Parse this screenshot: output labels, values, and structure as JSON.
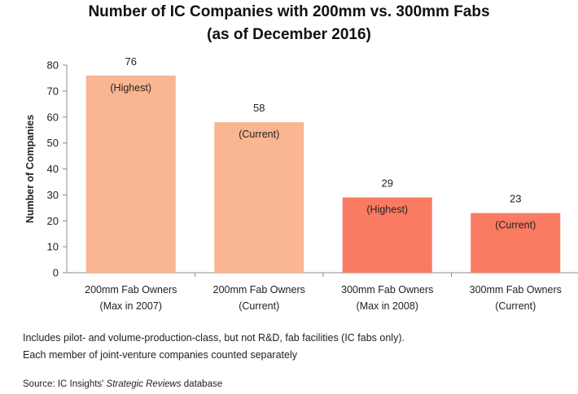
{
  "chart_data": {
    "type": "bar",
    "title": "Number of IC Companies with 200mm vs. 300mm Fabs",
    "subtitle": "(as of December 2016)",
    "ylabel": "Number of Companies",
    "xlabel": "",
    "ylim": [
      0,
      80
    ],
    "yticks": [
      0,
      10,
      20,
      30,
      40,
      50,
      60,
      70,
      80
    ],
    "grid": false,
    "legend": "none",
    "categories": [
      [
        "200mm Fab Owners",
        "(Max in 2007)"
      ],
      [
        "200mm Fab Owners",
        "(Current)"
      ],
      [
        "300mm Fab Owners",
        "(Max in 2008)"
      ],
      [
        "300mm Fab Owners",
        "(Current)"
      ]
    ],
    "values": [
      76,
      58,
      29,
      23
    ],
    "annotations": [
      "(Highest)",
      "(Current)",
      "(Highest)",
      "(Current)"
    ],
    "colors": [
      "#f9b690",
      "#f9b690",
      "#fa7b61",
      "#fa7b61"
    ]
  },
  "notes": {
    "line1": "Includes pilot- and volume-production-class, but not R&D, fab facilities (IC fabs only).",
    "line2": "Each member of joint-venture companies counted separately"
  },
  "source": {
    "prefix": "Source:  IC Insights' ",
    "italic": "Strategic Reviews",
    "suffix": " database"
  }
}
